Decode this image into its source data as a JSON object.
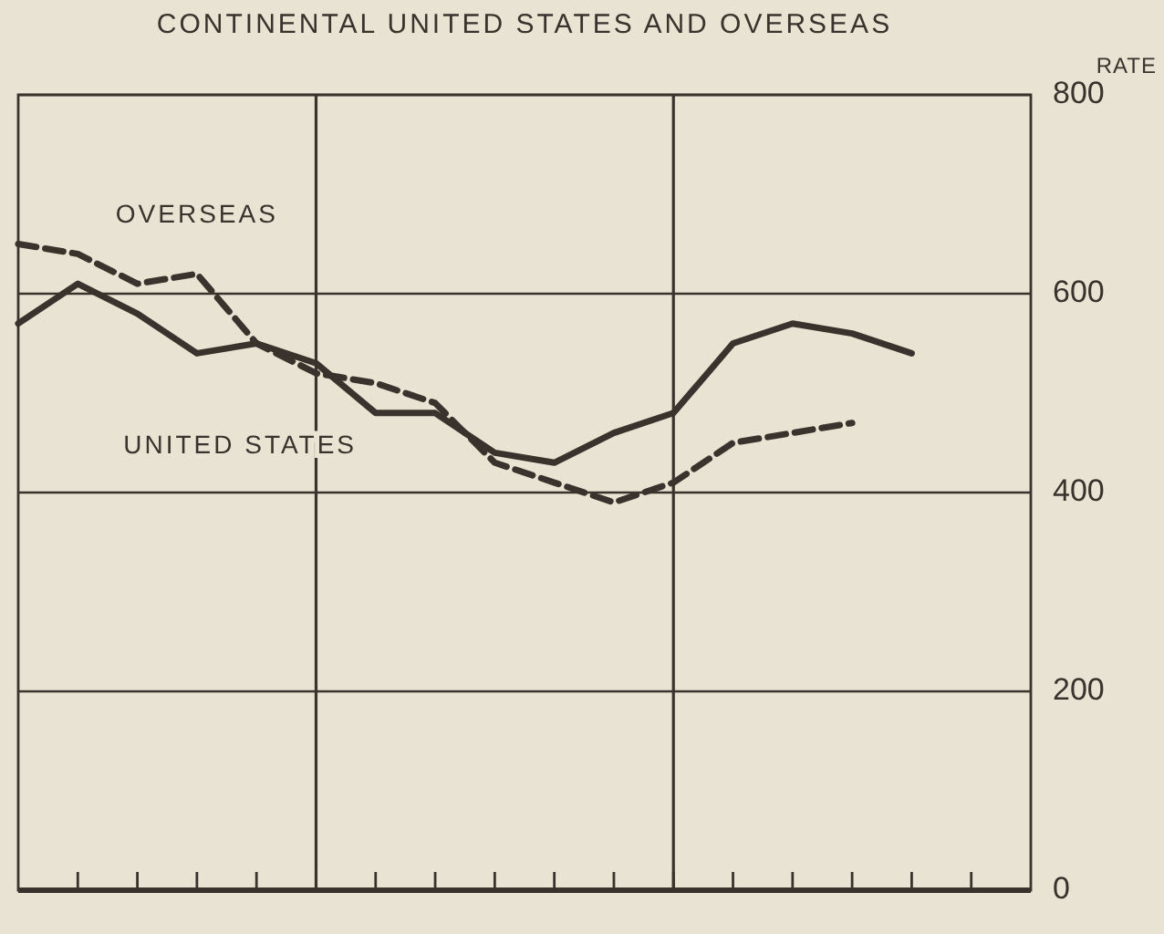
{
  "chart_data": {
    "type": "line",
    "title": "CONTINENTAL UNITED STATES AND OVERSEAS",
    "ylabel": "RATE",
    "categories": [
      null,
      null,
      null,
      null,
      null,
      null,
      null,
      null,
      null,
      null,
      null,
      null,
      null,
      null,
      null,
      null,
      null,
      null
    ],
    "series": [
      {
        "name": "UNITED STATES",
        "color": "#3a322c",
        "line_style": "solid",
        "values": [
          570,
          610,
          580,
          540,
          550,
          530,
          480,
          480,
          440,
          430,
          460,
          480,
          550,
          570,
          560,
          540,
          null,
          null
        ]
      },
      {
        "name": "OVERSEAS",
        "color": "#3a322c",
        "line_style": "dashed",
        "values": [
          650,
          640,
          610,
          620,
          550,
          520,
          510,
          490,
          430,
          410,
          390,
          410,
          450,
          460,
          470,
          null,
          null,
          null
        ]
      }
    ],
    "ylim": [
      0,
      800
    ],
    "yticks": [
      0,
      200,
      400,
      600,
      800
    ],
    "grid": "y",
    "tick_labels": "y"
  }
}
